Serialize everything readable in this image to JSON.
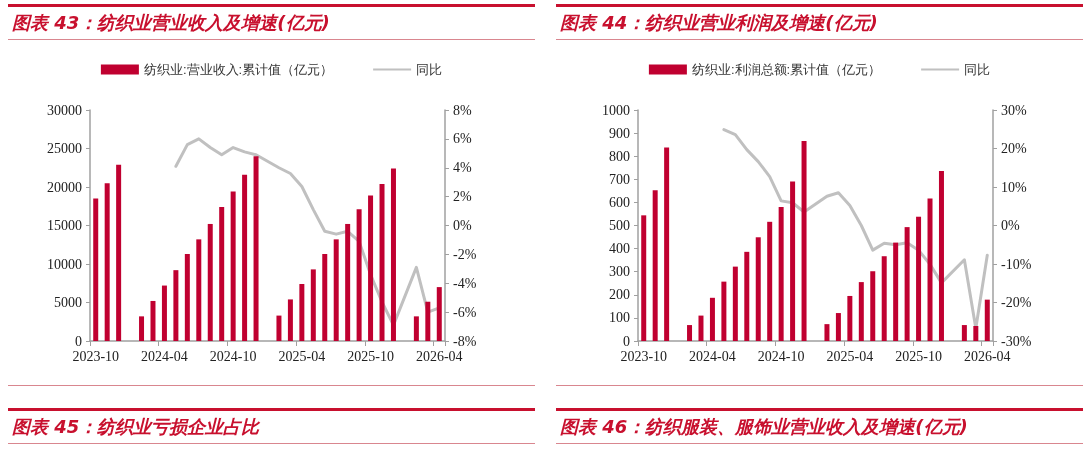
{
  "chart_data": [
    {
      "type": "bar",
      "title": "图表 43：纺织业营业收入及增速(亿元)",
      "legend": "top",
      "marker": "none",
      "categories": [
        "2023-10",
        null,
        null,
        null,
        null,
        null,
        "2024-04",
        null,
        null,
        null,
        null,
        null,
        "2024-10",
        null,
        null,
        null,
        null,
        null,
        "2025-04",
        null,
        null,
        null,
        null,
        null,
        "2025-10",
        null,
        null,
        null,
        null,
        null,
        "2026-04"
      ],
      "ylim": [
        0,
        30000
      ],
      "yticks": [
        0,
        5000,
        10000,
        15000,
        20000,
        25000,
        30000
      ],
      "y2lim": [
        -8,
        8
      ],
      "y2ticks": [
        {
          "value": -8,
          "label": "-8%"
        },
        {
          "value": -6,
          "label": "-6%"
        },
        {
          "value": -4,
          "label": "-4%"
        },
        {
          "value": -2,
          "label": "-2%"
        },
        {
          "value": 0,
          "label": "0%"
        },
        {
          "value": 2,
          "label": "2%"
        },
        {
          "value": 4,
          "label": "4%"
        },
        {
          "value": 6,
          "label": "6%"
        },
        {
          "value": 8,
          "label": "8%"
        }
      ],
      "series": [
        {
          "name": "纺织业:营业收入:累计值（亿元）",
          "type": "bar",
          "color": "#c00030",
          "values": [
            18500,
            20500,
            22900,
            null,
            3200,
            5200,
            7200,
            9200,
            11300,
            13200,
            15200,
            17400,
            19400,
            21600,
            24000,
            null,
            3300,
            5400,
            7400,
            9300,
            11300,
            13200,
            15200,
            17100,
            18900,
            20400,
            22400,
            null,
            3200,
            5100,
            7000
          ]
        },
        {
          "name": "同比",
          "type": "line",
          "axis": "y2",
          "color": "#c0c0c0",
          "values": [
            null,
            null,
            null,
            null,
            null,
            null,
            null,
            4.1,
            5.6,
            6.0,
            5.4,
            4.9,
            5.4,
            5.1,
            4.9,
            null,
            4.0,
            3.6,
            2.7,
            1.1,
            -0.4,
            -0.6,
            -0.4,
            -1.1,
            -3.4,
            -5.3,
            -6.9,
            null,
            -2.9,
            -6.0,
            -5.7
          ]
        }
      ]
    },
    {
      "type": "bar",
      "title": "图表 44：纺织业营业利润及增速(亿元)",
      "legend": "top",
      "marker": "none",
      "categories": [
        "2023-10",
        null,
        null,
        null,
        null,
        null,
        "2024-04",
        null,
        null,
        null,
        null,
        null,
        "2024-10",
        null,
        null,
        null,
        null,
        null,
        "2025-04",
        null,
        null,
        null,
        null,
        null,
        "2025-10",
        null,
        null,
        null,
        null,
        null,
        "2026-04"
      ],
      "ylim": [
        0,
        1000
      ],
      "yticks": [
        0,
        100,
        200,
        300,
        400,
        500,
        600,
        700,
        800,
        900,
        1000
      ],
      "y2lim": [
        -30,
        30
      ],
      "y2ticks": [
        {
          "value": -30,
          "label": "-30%"
        },
        {
          "value": -20,
          "label": "-20%"
        },
        {
          "value": -10,
          "label": "-10%"
        },
        {
          "value": 0,
          "label": "0%"
        },
        {
          "value": 10,
          "label": "10%"
        },
        {
          "value": 20,
          "label": "20%"
        },
        {
          "value": 30,
          "label": "30%"
        }
      ],
      "series": [
        {
          "name": "纺织业:利润总额:累计值（亿元）",
          "type": "bar",
          "color": "#c00030",
          "values": [
            544,
            653,
            838,
            null,
            69,
            110,
            187,
            257,
            322,
            386,
            449,
            516,
            580,
            690,
            866,
            null,
            73,
            121,
            195,
            255,
            302,
            367,
            426,
            493,
            538,
            617,
            736,
            null,
            69,
            65,
            179
          ]
        },
        {
          "name": "同比",
          "type": "line",
          "axis": "y2",
          "color": "#c0c0c0",
          "values": [
            null,
            null,
            null,
            null,
            null,
            null,
            null,
            24.9,
            23.6,
            19.7,
            16.6,
            12.7,
            6.4,
            5.9,
            3.5,
            null,
            7.6,
            8.5,
            5.2,
            0.0,
            -6.4,
            -4.6,
            -5.0,
            -4.5,
            -6.4,
            -10.1,
            -14.9,
            null,
            -8.9,
            -26.7,
            -7.7
          ]
        }
      ]
    },
    {
      "type": "other",
      "title": "图表 45：纺织业亏损企业占比"
    },
    {
      "type": "other",
      "title": "图表 46：纺织服装、服饰业营业收入及增速(亿元)"
    }
  ]
}
